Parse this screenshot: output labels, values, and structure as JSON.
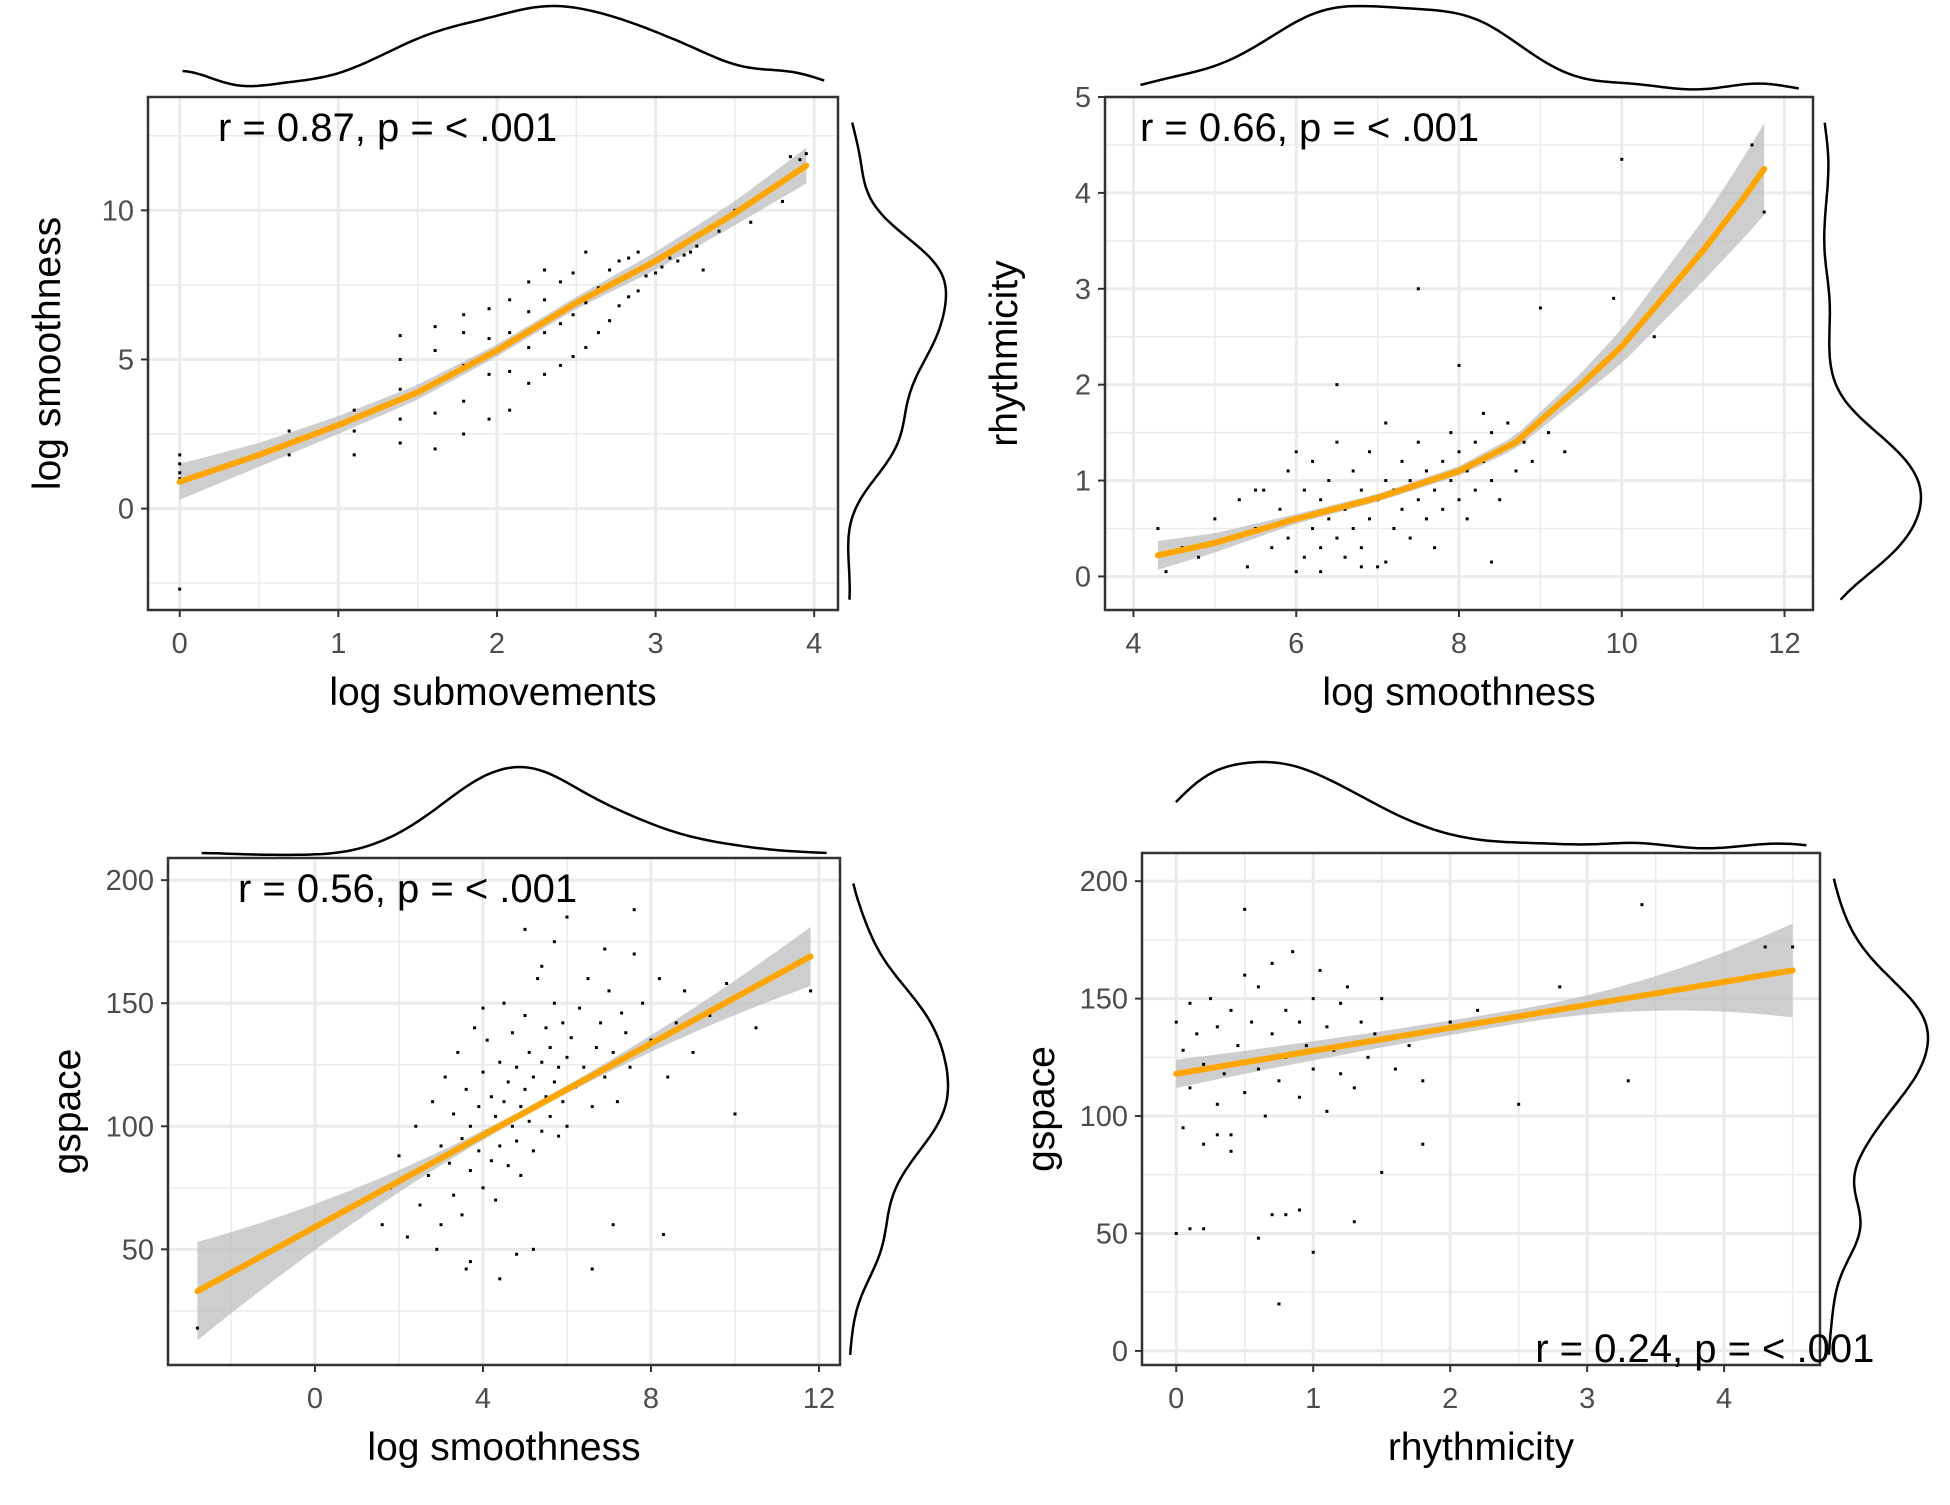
{
  "colors": {
    "fit_line": "#FFA500",
    "ci_band": "#BEBEBE",
    "points": "#000000",
    "grid": "#EBEBEB",
    "axis": "#333333"
  },
  "chart_data": [
    {
      "type": "scatter",
      "xlabel": "log submovements",
      "ylabel": "log smoothness",
      "xlim": [
        -0.2,
        4.15
      ],
      "ylim": [
        -3.4,
        13.8
      ],
      "xticks": [
        0,
        1,
        2,
        3,
        4
      ],
      "yticks": [
        0,
        5,
        10
      ],
      "annotation": "r = 0.87, p = < .001",
      "annotation_position": "top-left",
      "grid": true,
      "marginal_density": {
        "top": true,
        "right": true
      },
      "fit": {
        "x": [
          0,
          0.5,
          1,
          1.5,
          2,
          2.5,
          3,
          3.5,
          3.95
        ],
        "y": [
          0.9,
          1.8,
          2.8,
          3.9,
          5.3,
          6.9,
          8.3,
          9.9,
          11.5
        ]
      },
      "ci_halfwidth": [
        0.6,
        0.4,
        0.3,
        0.25,
        0.2,
        0.2,
        0.3,
        0.4,
        0.6
      ],
      "points": {
        "x": [
          0,
          0,
          0,
          0,
          0,
          0.69,
          0.69,
          1.1,
          1.1,
          1.1,
          1.39,
          1.39,
          1.39,
          1.39,
          1.39,
          1.61,
          1.61,
          1.61,
          1.61,
          1.61,
          1.79,
          1.79,
          1.79,
          1.79,
          1.79,
          1.95,
          1.95,
          1.95,
          1.95,
          2.08,
          2.08,
          2.08,
          2.08,
          2.2,
          2.2,
          2.2,
          2.2,
          2.3,
          2.3,
          2.3,
          2.3,
          2.4,
          2.4,
          2.4,
          2.48,
          2.48,
          2.48,
          2.56,
          2.56,
          2.56,
          2.64,
          2.64,
          2.71,
          2.71,
          2.77,
          2.77,
          2.83,
          2.83,
          2.89,
          2.89,
          2.94,
          3.0,
          3.04,
          3.09,
          3.14,
          3.18,
          3.22,
          3.26,
          3.3,
          3.4,
          3.5,
          3.6,
          3.8,
          3.85,
          3.91,
          3.95
        ],
        "y": [
          1.2,
          1.5,
          1.8,
          1.0,
          -2.7,
          1.8,
          2.6,
          1.8,
          2.6,
          3.3,
          2.2,
          3.0,
          4.0,
          5.0,
          5.8,
          2.0,
          3.2,
          4.2,
          5.3,
          6.1,
          2.5,
          3.6,
          4.8,
          5.9,
          6.5,
          3.0,
          4.5,
          5.7,
          6.7,
          3.3,
          4.6,
          5.9,
          7.0,
          4.2,
          5.4,
          6.6,
          7.6,
          4.5,
          5.9,
          7.0,
          8.0,
          4.8,
          6.2,
          7.6,
          5.1,
          6.5,
          7.9,
          5.4,
          6.9,
          8.6,
          5.9,
          7.4,
          6.3,
          8.0,
          6.8,
          8.3,
          7.1,
          8.4,
          7.3,
          8.6,
          7.8,
          7.9,
          8.1,
          8.4,
          8.3,
          8.5,
          8.6,
          8.8,
          8.0,
          9.3,
          10.0,
          9.6,
          10.3,
          11.8,
          11.7,
          11.9
        ]
      }
    },
    {
      "type": "scatter",
      "xlabel": "log smoothness",
      "ylabel": "rhythmicity",
      "xlim": [
        3.65,
        12.35
      ],
      "ylim": [
        -0.35,
        5.0
      ],
      "xticks": [
        4,
        6,
        8,
        10,
        12
      ],
      "yticks": [
        0,
        1,
        2,
        3,
        4,
        5
      ],
      "annotation": "r = 0.66, p = < .001",
      "annotation_position": "top-left",
      "grid": true,
      "marginal_density": {
        "top": true,
        "right": true
      },
      "fit": {
        "x": [
          4.3,
          5,
          6,
          7,
          8,
          8.7,
          9.5,
          10,
          10.5,
          11,
          11.5,
          11.75
        ],
        "y": [
          0.22,
          0.35,
          0.6,
          0.82,
          1.1,
          1.4,
          2.0,
          2.4,
          2.9,
          3.4,
          3.95,
          4.25
        ]
      },
      "ci_halfwidth": [
        0.15,
        0.1,
        0.05,
        0.04,
        0.05,
        0.07,
        0.12,
        0.18,
        0.25,
        0.32,
        0.42,
        0.48
      ],
      "points": {
        "x": [
          4.3,
          4.4,
          4.6,
          4.8,
          5.0,
          5.2,
          5.3,
          5.4,
          5.5,
          5.6,
          5.7,
          5.8,
          5.9,
          5.9,
          6.0,
          6.0,
          6.1,
          6.1,
          6.2,
          6.2,
          6.3,
          6.3,
          6.4,
          6.4,
          6.5,
          6.5,
          6.6,
          6.6,
          6.7,
          6.7,
          6.8,
          6.8,
          6.9,
          6.9,
          7.0,
          7.0,
          7.1,
          7.1,
          7.2,
          7.2,
          7.3,
          7.3,
          7.4,
          7.4,
          7.5,
          7.5,
          7.6,
          7.6,
          7.7,
          7.7,
          7.8,
          7.8,
          7.9,
          7.9,
          8.0,
          8.0,
          8.1,
          8.1,
          8.2,
          8.2,
          8.3,
          8.3,
          8.4,
          8.4,
          8.5,
          8.5,
          8.6,
          8.7,
          8.8,
          8.9,
          9.0,
          9.1,
          9.3,
          9.9,
          10.0,
          10.4,
          11.6,
          11.75,
          11.7,
          6.5,
          8.0,
          7.5,
          6.0,
          6.8,
          6.3,
          7.1,
          5.5,
          8.4
        ],
        "y": [
          0.5,
          0.05,
          0.3,
          0.2,
          0.6,
          0.4,
          0.8,
          0.1,
          0.5,
          0.9,
          0.3,
          0.7,
          1.1,
          0.4,
          0.6,
          1.3,
          0.2,
          0.9,
          0.5,
          1.2,
          0.3,
          0.8,
          1.0,
          0.6,
          0.4,
          1.4,
          0.7,
          0.2,
          1.1,
          0.5,
          0.9,
          0.3,
          0.6,
          1.3,
          0.8,
          0.1,
          1.0,
          1.6,
          0.5,
          0.9,
          0.7,
          1.2,
          0.4,
          1.0,
          0.8,
          1.4,
          0.6,
          1.1,
          0.9,
          0.3,
          1.2,
          0.7,
          1.5,
          1.0,
          0.8,
          1.3,
          1.1,
          0.6,
          1.4,
          0.9,
          1.2,
          1.7,
          1.0,
          1.5,
          1.3,
          0.8,
          1.6,
          1.1,
          1.4,
          1.2,
          2.8,
          1.5,
          1.3,
          2.9,
          4.35,
          2.5,
          4.5,
          3.8,
          4.2,
          2.0,
          2.2,
          3.0,
          0.05,
          0.1,
          0.05,
          0.15,
          0.9,
          0.15
        ]
      }
    },
    {
      "type": "scatter",
      "xlabel": "log smoothness",
      "ylabel": "gspace",
      "xlim": [
        -3.5,
        12.5
      ],
      "ylim": [
        3,
        209
      ],
      "xticks": [
        0,
        4,
        8,
        12
      ],
      "yticks": [
        50,
        100,
        150,
        200
      ],
      "annotation": "r = 0.56, p = < .001",
      "annotation_position": "top-left",
      "grid": true,
      "marginal_density": {
        "top": true,
        "right": true
      },
      "fit": {
        "x": [
          -2.8,
          11.8
        ],
        "y": [
          33,
          169
        ]
      },
      "ci_halfwidth": [
        20,
        1.5,
        12
      ],
      "points": {
        "x": [
          -2.8,
          1.6,
          1.8,
          2.0,
          2.2,
          2.4,
          2.5,
          2.7,
          2.8,
          3.0,
          3.0,
          3.1,
          3.2,
          3.3,
          3.3,
          3.4,
          3.5,
          3.5,
          3.6,
          3.7,
          3.7,
          3.8,
          3.9,
          3.9,
          4.0,
          4.0,
          4.1,
          4.1,
          4.2,
          4.2,
          4.3,
          4.3,
          4.4,
          4.4,
          4.5,
          4.5,
          4.6,
          4.6,
          4.7,
          4.7,
          4.8,
          4.8,
          4.9,
          4.9,
          5.0,
          5.0,
          5.1,
          5.1,
          5.2,
          5.2,
          5.3,
          5.3,
          5.4,
          5.4,
          5.5,
          5.5,
          5.6,
          5.6,
          5.7,
          5.7,
          5.8,
          5.8,
          5.9,
          5.9,
          6.0,
          6.0,
          6.1,
          6.2,
          6.3,
          6.4,
          6.5,
          6.6,
          6.7,
          6.8,
          6.9,
          7.0,
          7.1,
          7.2,
          7.3,
          7.4,
          7.5,
          7.6,
          7.8,
          8.0,
          8.2,
          8.4,
          8.6,
          8.8,
          9.0,
          9.4,
          9.8,
          10.0,
          10.5,
          11.8,
          3.6,
          4.8,
          5.2,
          6.6,
          7.1,
          8.3,
          6.0,
          5.0,
          2.9,
          4.4,
          7.6,
          3.7,
          5.7,
          6.9,
          4.0,
          5.4
        ],
        "y": [
          18,
          60,
          75,
          88,
          55,
          100,
          68,
          80,
          110,
          92,
          60,
          120,
          85,
          105,
          72,
          130,
          95,
          64,
          115,
          100,
          82,
          140,
          90,
          108,
          122,
          75,
          98,
          135,
          86,
          112,
          104,
          70,
          126,
          92,
          150,
          110,
          84,
          118,
          100,
          138,
          94,
          124,
          108,
          80,
          145,
          115,
          102,
          130,
          90,
          120,
          160,
          108,
          126,
          98,
          140,
          112,
          104,
          132,
          118,
          150,
          96,
          124,
          110,
          142,
          128,
          100,
          136,
          116,
          148,
          124,
          160,
          108,
          132,
          142,
          120,
          155,
          130,
          110,
          146,
          138,
          124,
          170,
          150,
          135,
          160,
          120,
          142,
          155,
          130,
          145,
          158,
          105,
          140,
          155,
          42,
          48,
          50,
          42,
          60,
          56,
          185,
          180,
          50,
          38,
          188,
          45,
          175,
          172,
          148,
          165
        ]
      }
    },
    {
      "type": "scatter",
      "xlabel": "rhythmicity",
      "ylabel": "gspace",
      "xlim": [
        -0.25,
        4.7
      ],
      "ylim": [
        -6,
        212
      ],
      "xticks": [
        0,
        1,
        2,
        3,
        4
      ],
      "yticks": [
        0,
        50,
        100,
        150,
        200
      ],
      "annotation": "r = 0.24, p = < .001",
      "annotation_position": "bottom-right",
      "grid": true,
      "marginal_density": {
        "top": true,
        "right": true
      },
      "fit": {
        "x": [
          0,
          4.5
        ],
        "y": [
          118,
          162
        ]
      },
      "ci_halfwidth": [
        6,
        3,
        20
      ],
      "points": {
        "x": [
          0.0,
          0.05,
          0.05,
          0.1,
          0.1,
          0.15,
          0.2,
          0.2,
          0.25,
          0.3,
          0.3,
          0.35,
          0.4,
          0.4,
          0.45,
          0.5,
          0.5,
          0.55,
          0.6,
          0.6,
          0.65,
          0.7,
          0.7,
          0.75,
          0.8,
          0.8,
          0.85,
          0.9,
          0.9,
          0.95,
          1.0,
          1.0,
          1.05,
          1.1,
          1.1,
          1.15,
          1.2,
          1.2,
          1.25,
          1.3,
          1.35,
          1.4,
          1.45,
          1.5,
          1.6,
          1.7,
          1.8,
          2.0,
          2.2,
          2.5,
          2.8,
          3.3,
          3.4,
          4.3,
          4.5,
          0.0,
          0.1,
          0.2,
          0.7,
          0.8,
          0.6,
          1.0,
          1.3,
          0.3,
          0.4,
          0.75,
          0.5,
          1.5,
          1.8,
          0.9
        ],
        "y": [
          140,
          95,
          128,
          148,
          112,
          135,
          88,
          122,
          150,
          105,
          138,
          118,
          145,
          92,
          130,
          160,
          110,
          140,
          120,
          155,
          100,
          135,
          165,
          115,
          145,
          125,
          170,
          108,
          140,
          130,
          150,
          120,
          162,
          102,
          138,
          128,
          148,
          118,
          155,
          112,
          140,
          125,
          135,
          150,
          120,
          130,
          115,
          140,
          145,
          105,
          155,
          115,
          190,
          172,
          172,
          50,
          52,
          52,
          58,
          58,
          48,
          42,
          55,
          92,
          85,
          20,
          188,
          76,
          88,
          60
        ]
      }
    }
  ]
}
